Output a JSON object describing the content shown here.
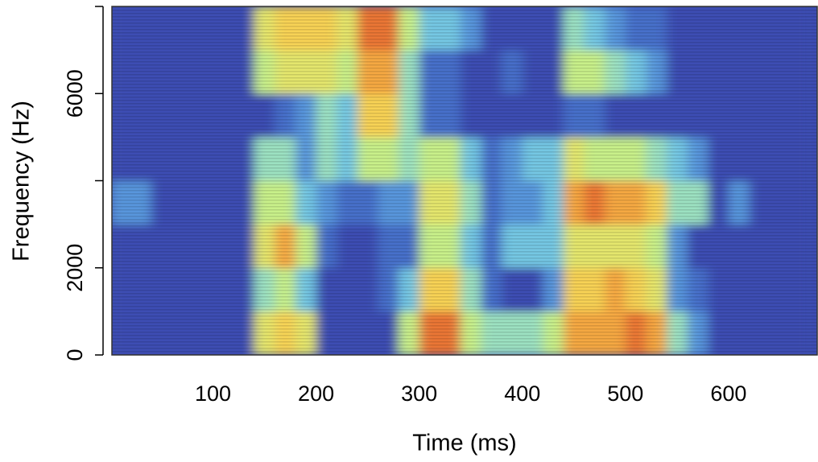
{
  "chart_data": {
    "type": "heatmap",
    "x_label": "Time (ms)",
    "y_label": "Frequency (Hz)",
    "xlim": [
      2,
      686
    ],
    "ylim": [
      0,
      8000
    ],
    "xticks": [
      100,
      200,
      300,
      400,
      500,
      600
    ],
    "yticks": [
      0,
      2000,
      {
        "value": 4000,
        "label": null
      },
      6000,
      {
        "value": 8000,
        "label": null
      }
    ],
    "zlim": [
      0,
      10
    ],
    "colors": [
      "#3c4db3",
      "#4f86d9",
      "#7fd7e6",
      "#c8f08a",
      "#f7e05a",
      "#f59a3c",
      "#d9402a"
    ],
    "xbins": [
      0,
      20,
      40,
      60,
      80,
      100,
      120,
      140,
      160,
      180,
      200,
      220,
      240,
      260,
      280,
      300,
      320,
      340,
      360,
      380,
      400,
      420,
      440,
      460,
      480,
      500,
      520,
      540,
      560,
      580,
      600,
      620,
      640,
      660,
      680
    ],
    "ybins": [
      0,
      1000,
      2000,
      3000,
      4000,
      5000,
      6000,
      7000,
      8000
    ],
    "values": [
      [
        0,
        0,
        0,
        2,
        0,
        0,
        0,
        0
      ],
      [
        0,
        0,
        0,
        2,
        0,
        0,
        0,
        0
      ],
      [
        0,
        0,
        0,
        0,
        0,
        0,
        0,
        0
      ],
      [
        0,
        0,
        0,
        0,
        0,
        0,
        0,
        0
      ],
      [
        0,
        0,
        0,
        0,
        0,
        0,
        0,
        0
      ],
      [
        0,
        0,
        0,
        0,
        0,
        0,
        0,
        0
      ],
      [
        0,
        0,
        0,
        0,
        0,
        0,
        0,
        0
      ],
      [
        6,
        4,
        6,
        5,
        4,
        0,
        5,
        6
      ],
      [
        7,
        5,
        8,
        5,
        4,
        1,
        6,
        7
      ],
      [
        6,
        3,
        5,
        3,
        2,
        2,
        6,
        7
      ],
      [
        0,
        0,
        1,
        2,
        4,
        4,
        6,
        7
      ],
      [
        0,
        0,
        0,
        1,
        3,
        3,
        5,
        6
      ],
      [
        0,
        0,
        0,
        1,
        5,
        7,
        8,
        9
      ],
      [
        0,
        1,
        1,
        2,
        5,
        7,
        8,
        9
      ],
      [
        5,
        3,
        1,
        2,
        4,
        4,
        4,
        5
      ],
      [
        9,
        7,
        5,
        6,
        5,
        1,
        1,
        3
      ],
      [
        9,
        7,
        5,
        6,
        5,
        1,
        1,
        3
      ],
      [
        5,
        4,
        3,
        4,
        3,
        0,
        0,
        2
      ],
      [
        4,
        1,
        1,
        1,
        1,
        0,
        0,
        0
      ],
      [
        4,
        0,
        3,
        2,
        2,
        0,
        1,
        0
      ],
      [
        4,
        0,
        3,
        2,
        3,
        0,
        0,
        0
      ],
      [
        5,
        2,
        3,
        3,
        3,
        0,
        0,
        0
      ],
      [
        8,
        7,
        6,
        8,
        6,
        1,
        5,
        4
      ],
      [
        8,
        7,
        6,
        9,
        5,
        1,
        5,
        3
      ],
      [
        8,
        8,
        6,
        8,
        5,
        0,
        4,
        2
      ],
      [
        9,
        7,
        6,
        8,
        5,
        0,
        3,
        1
      ],
      [
        8,
        6,
        5,
        7,
        4,
        0,
        2,
        1
      ],
      [
        4,
        2,
        2,
        4,
        3,
        0,
        0,
        0
      ],
      [
        2,
        1,
        0,
        4,
        2,
        0,
        0,
        0
      ],
      [
        0,
        0,
        0,
        0,
        0,
        0,
        0,
        0
      ],
      [
        0,
        0,
        0,
        2,
        0,
        0,
        0,
        0
      ],
      [
        0,
        0,
        0,
        0,
        0,
        0,
        0,
        0
      ],
      [
        0,
        0,
        0,
        0,
        0,
        0,
        0,
        0
      ],
      [
        0,
        0,
        0,
        0,
        0,
        0,
        0,
        0
      ]
    ]
  }
}
